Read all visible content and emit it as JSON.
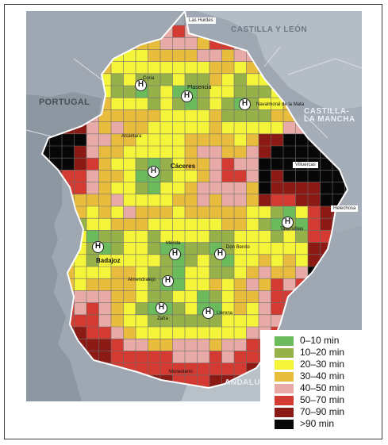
{
  "map": {
    "regions": [
      "CASTILLA Y LEÓN",
      "CASTILLA-LA MANCHA",
      "ANDALUCÍA"
    ],
    "country": "PORTUGAL",
    "places": [
      "Las Hurdes",
      "Coria",
      "Plasencia",
      "Navalmoral de la Mata",
      "Alcántara",
      "Cáceres",
      "Villuercas",
      "Helechosa",
      "Talarrubias",
      "Badajoz",
      "Mérida",
      "Don Benito",
      "Almendralejo",
      "Zafra",
      "Llerena",
      "Monesterio"
    ],
    "hospital_marker": "H",
    "hospital_icon": "hospital-icon"
  },
  "legend": {
    "items": [
      {
        "label": "0–10 min",
        "color": "#6bba5b"
      },
      {
        "label": "10–20 min",
        "color": "#96b04a"
      },
      {
        "label": "20–30 min",
        "color": "#f4f43a"
      },
      {
        "label": "30–40 min",
        "color": "#e8bc3c"
      },
      {
        "label": "40–50 min",
        "color": "#e8aaa6"
      },
      {
        "label": "50–70 min",
        "color": "#d23a32"
      },
      {
        "label": "70–90 min",
        "color": "#8b1a14"
      },
      {
        "label": ">90 min",
        "color": "#070707"
      }
    ]
  }
}
